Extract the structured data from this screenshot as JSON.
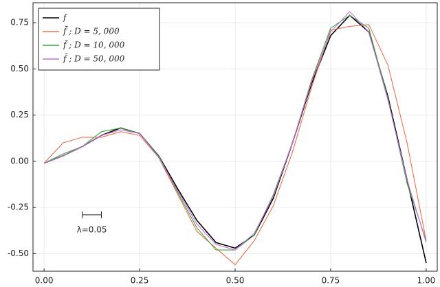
{
  "chart_data": {
    "type": "line",
    "x": [
      0,
      0.05,
      0.1,
      0.15,
      0.2,
      0.25,
      0.3,
      0.35,
      0.4,
      0.45,
      0.5,
      0.55,
      0.6,
      0.65,
      0.7,
      0.75,
      0.8,
      0.85,
      0.9,
      0.95,
      1.0
    ],
    "series": [
      {
        "name": "f",
        "color": "#000000",
        "values": [
          -0.01,
          0.03,
          0.08,
          0.14,
          0.18,
          0.15,
          0.03,
          -0.15,
          -0.32,
          -0.44,
          -0.47,
          -0.4,
          -0.2,
          0.1,
          0.42,
          0.68,
          0.79,
          0.7,
          0.35,
          -0.1,
          -0.55
        ]
      },
      {
        "name": "f̄ ; D = 5, 000",
        "color": "#e8714e",
        "values": [
          -0.01,
          0.1,
          0.13,
          0.13,
          0.16,
          0.14,
          0.02,
          -0.18,
          -0.38,
          -0.47,
          -0.56,
          -0.43,
          -0.24,
          0.05,
          0.4,
          0.71,
          0.73,
          0.74,
          0.52,
          0.1,
          -0.43
        ]
      },
      {
        "name": "f̄ ; D = 10, 000",
        "color": "#3fa63f",
        "values": [
          -0.01,
          0.04,
          0.08,
          0.16,
          0.18,
          0.15,
          0.03,
          -0.17,
          -0.36,
          -0.48,
          -0.48,
          -0.4,
          -0.18,
          0.1,
          0.44,
          0.72,
          0.79,
          0.72,
          0.34,
          -0.12,
          -0.43
        ]
      },
      {
        "name": "f̄ ; D = 50, 000",
        "color": "#c86ddb",
        "values": [
          -0.01,
          0.03,
          0.08,
          0.14,
          0.17,
          0.15,
          0.02,
          -0.16,
          -0.34,
          -0.45,
          -0.48,
          -0.39,
          -0.19,
          0.1,
          0.43,
          0.7,
          0.81,
          0.7,
          0.33,
          -0.1,
          -0.44
        ]
      }
    ],
    "xlim": [
      -0.029,
      1.029
    ],
    "ylim": [
      -0.595,
      0.858
    ],
    "xticks": [
      {
        "value": 0,
        "label": "0.00"
      },
      {
        "value": 0.25,
        "label": "0.25"
      },
      {
        "value": 0.5,
        "label": "0.50"
      },
      {
        "value": 0.75,
        "label": "0.75"
      },
      {
        "value": 1,
        "label": "1.00"
      }
    ],
    "yticks": [
      {
        "value": -0.5,
        "label": "-0.50"
      },
      {
        "value": -0.25,
        "label": "-0.25"
      },
      {
        "value": 0,
        "label": "0.00"
      },
      {
        "value": 0.25,
        "label": "0.25"
      },
      {
        "value": 0.5,
        "label": "0.50"
      },
      {
        "value": 0.75,
        "label": "0.75"
      }
    ],
    "grid": true,
    "legend": "upper-left",
    "scale_bar": {
      "label": "λ=0.05",
      "value": 0.05
    }
  }
}
